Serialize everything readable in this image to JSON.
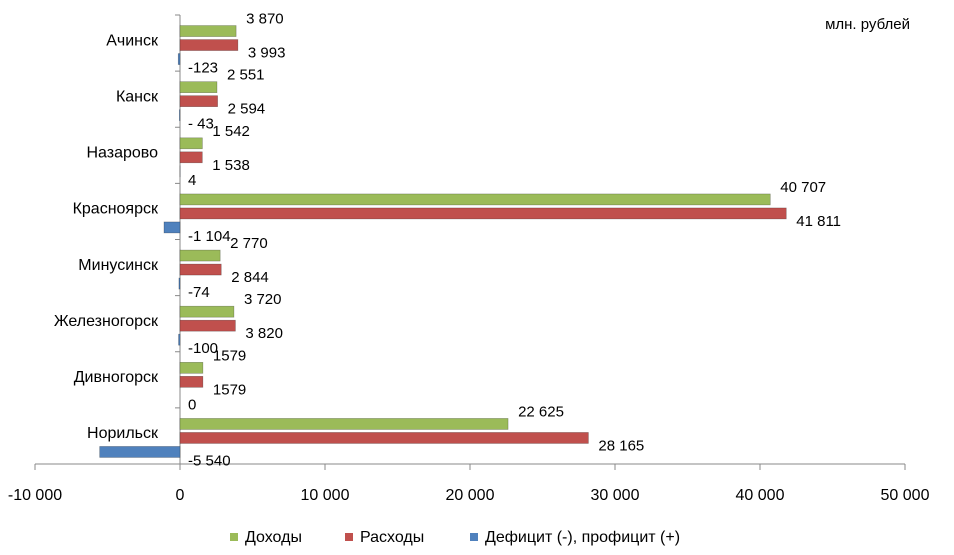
{
  "chart_data": {
    "type": "bar",
    "orientation": "horizontal",
    "annotation": "млн. рублей",
    "categories": [
      "Ачинск",
      "Канск",
      "Назарово",
      "Красноярск",
      "Минусинск",
      "Железногорск",
      "Дивногорск",
      "Норильск"
    ],
    "series": [
      {
        "name": "Доходы",
        "color": "#9bbb59",
        "values": [
          3870,
          2551,
          1542,
          40707,
          2770,
          3720,
          1579,
          22625
        ],
        "value_labels": [
          "3 870",
          "2 551",
          "1 542",
          "40 707",
          "2 770",
          "3 720",
          "1579",
          "22 625"
        ]
      },
      {
        "name": "Расходы",
        "color": "#c0504d",
        "values": [
          3993,
          2594,
          1538,
          41811,
          2844,
          3820,
          1579,
          28165
        ],
        "value_labels": [
          "3 993",
          "2 594",
          "1 538",
          "41 811",
          "2 844",
          "3 820",
          "1579",
          "28 165"
        ]
      },
      {
        "name": "Дефицит (-), профицит (+)",
        "color": "#4f81bd",
        "values": [
          -123,
          -43,
          4,
          -1104,
          -74,
          -100,
          0,
          -5540
        ],
        "value_labels": [
          "-123",
          "- 43",
          "4",
          "-1 104",
          "-74",
          "-100",
          "0",
          "-5 540"
        ]
      }
    ],
    "xlim": [
      -10000,
      50000
    ],
    "xticks": [
      {
        "value": -10000,
        "label": "-10 000"
      },
      0,
      {
        "value": 10000,
        "label": "10 000"
      },
      {
        "value": 20000,
        "label": "20 000"
      },
      {
        "value": 30000,
        "label": "30 000"
      },
      {
        "value": 40000,
        "label": "40 000"
      },
      {
        "value": 50000,
        "label": "50 000"
      }
    ],
    "legend": "bottom"
  }
}
